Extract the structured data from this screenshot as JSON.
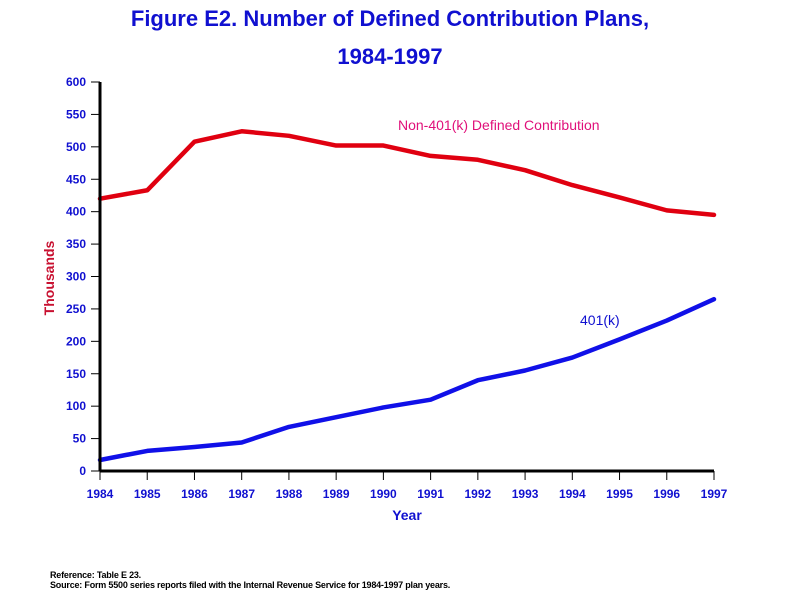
{
  "chart_data": {
    "type": "line",
    "title": "Figure E2.  Number of Defined Contribution Plans,",
    "subtitle": "1984-1997",
    "xlabel": "Year",
    "ylabel": "Thousands",
    "x": [
      1984,
      1985,
      1986,
      1987,
      1988,
      1989,
      1990,
      1991,
      1992,
      1993,
      1994,
      1995,
      1996,
      1997
    ],
    "xlim": [
      1984,
      1997
    ],
    "ylim": [
      0,
      600
    ],
    "yticks": [
      0,
      50,
      100,
      150,
      200,
      250,
      300,
      350,
      400,
      450,
      500,
      550,
      600
    ],
    "grid": false,
    "series": [
      {
        "name": "Non-401(k) Defined Contribution",
        "color": "#e00010",
        "label_color": "#e0107a",
        "values": [
          420,
          433,
          508,
          524,
          517,
          502,
          502,
          486,
          480,
          464,
          441,
          422,
          402,
          395
        ]
      },
      {
        "name": "401(k)",
        "color": "#1010e8",
        "label_color": "#1010d0",
        "values": [
          17,
          31,
          37,
          44,
          68,
          83,
          98,
          110,
          140,
          155,
          175,
          203,
          232,
          265
        ]
      }
    ]
  },
  "footer": {
    "reference": "Reference: Table E 23.",
    "source": "Source: Form 5500 series reports filed with the Internal Revenue Service for 1984-1997 plan years."
  }
}
